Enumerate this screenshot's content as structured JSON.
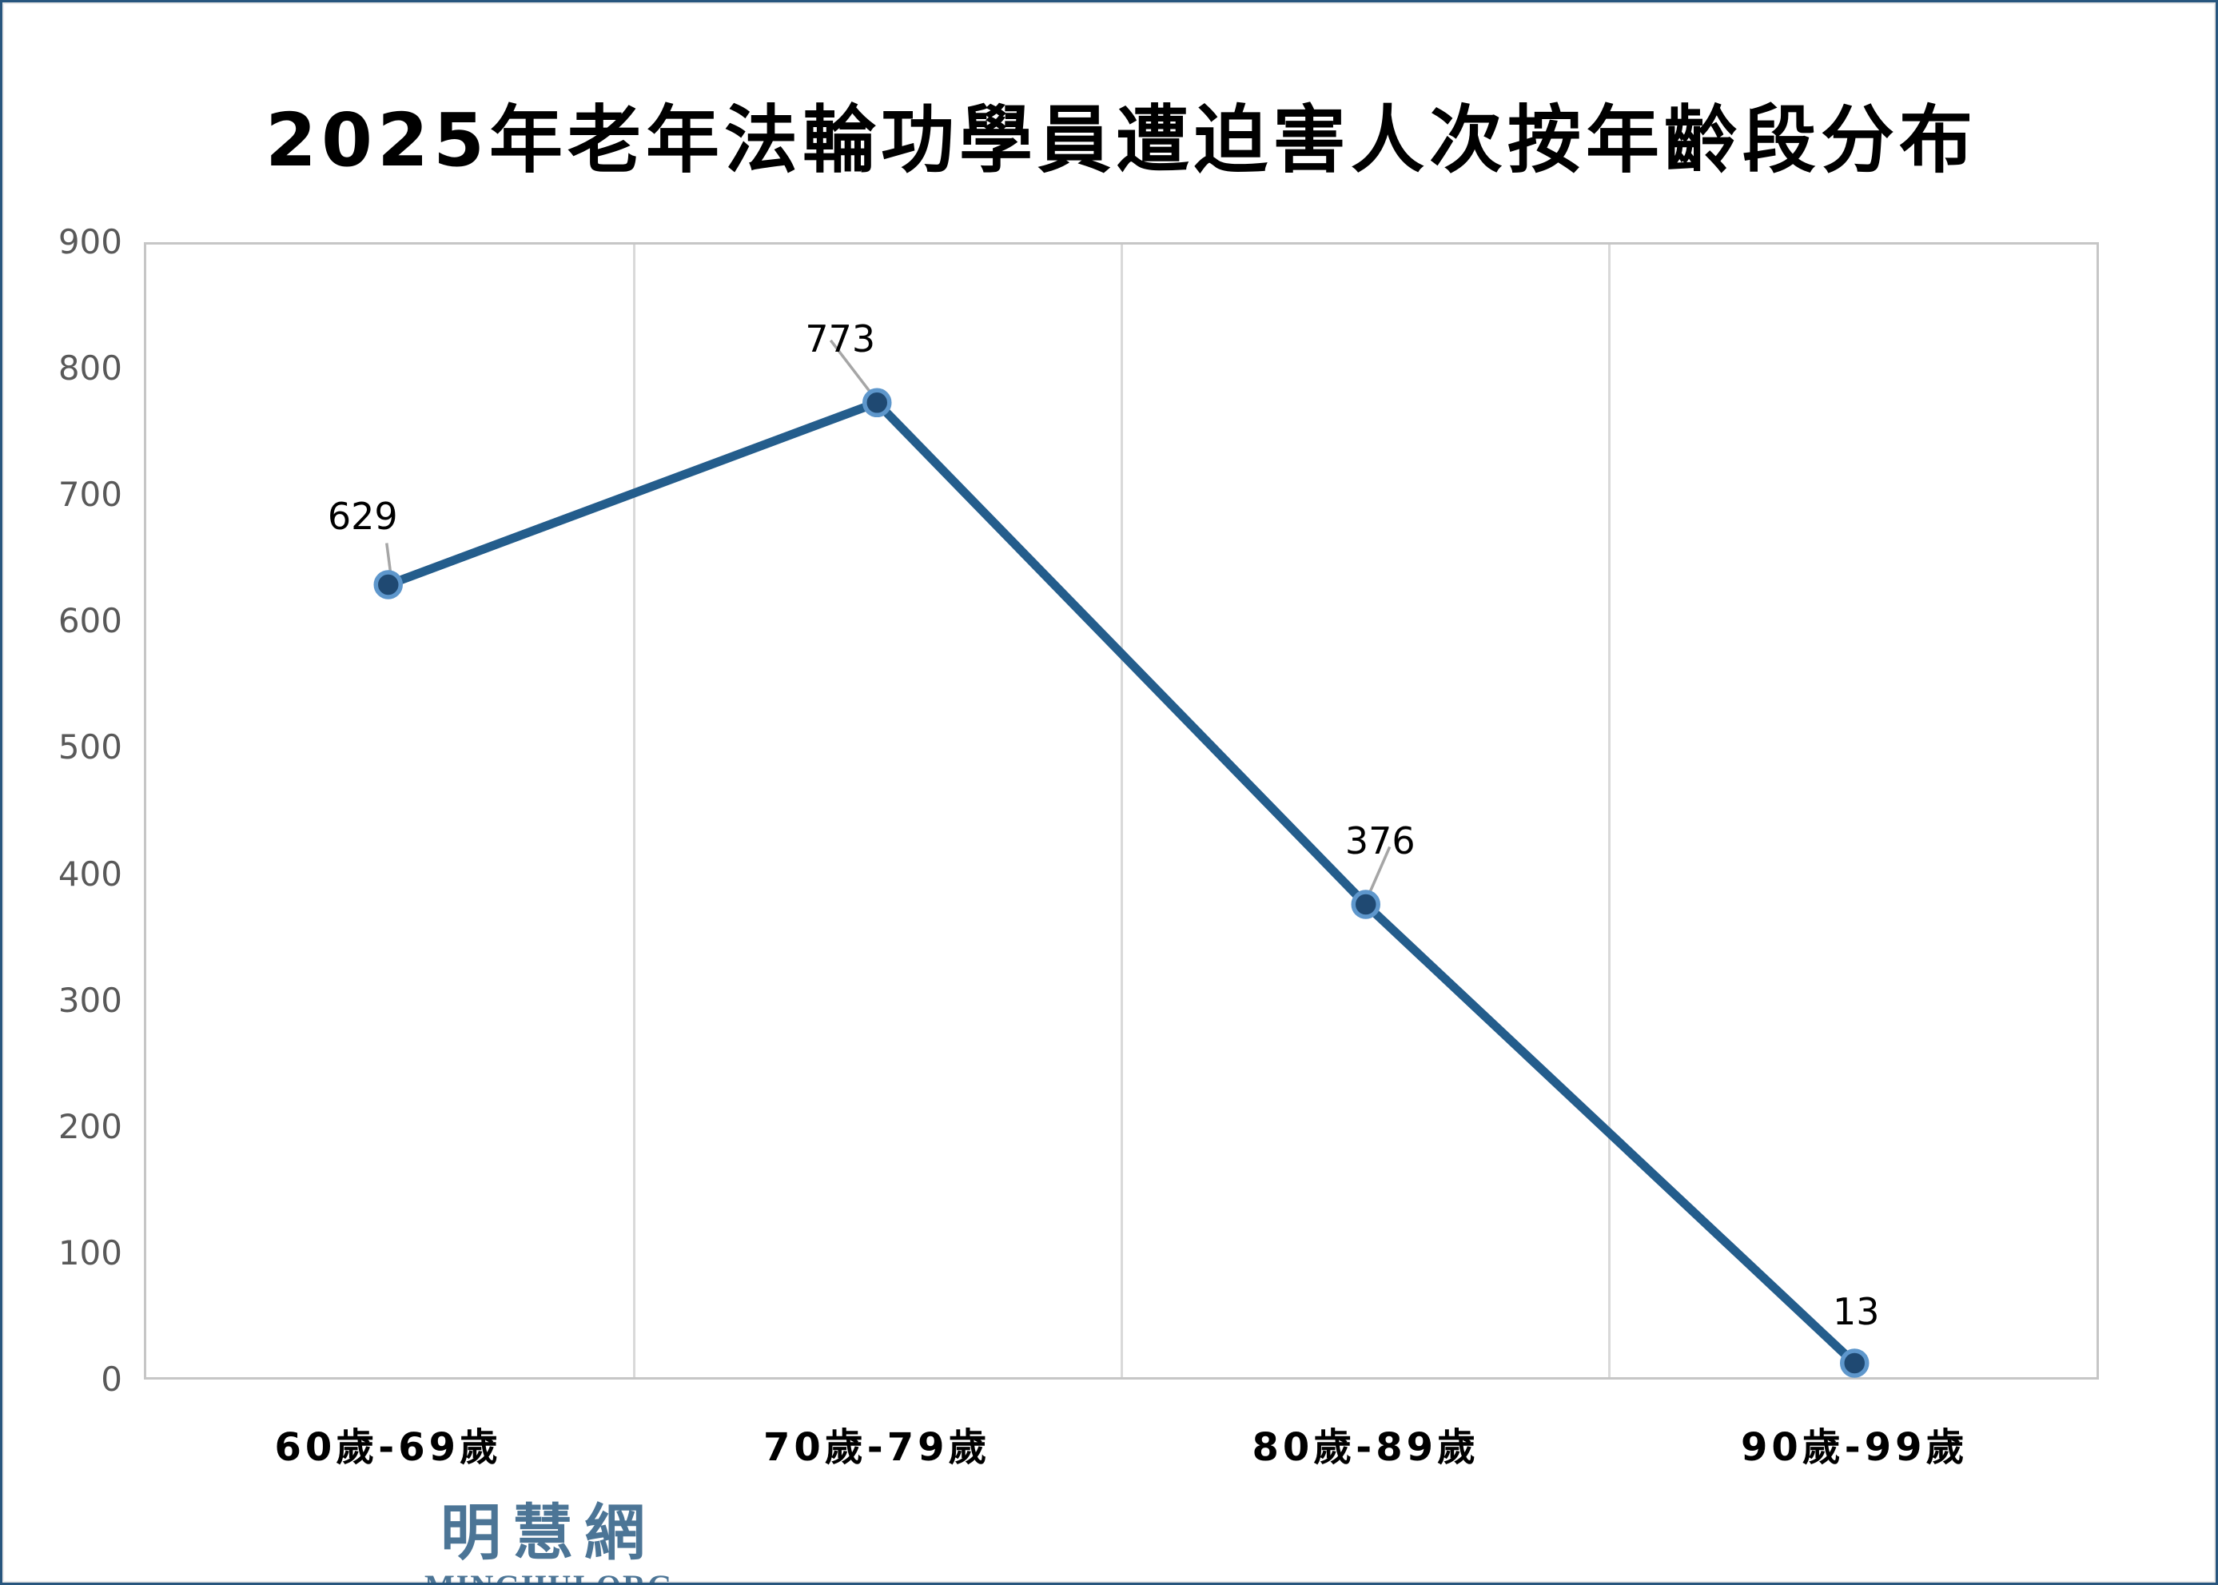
{
  "title": "2025年老年法輪功學員遭迫害人次按年齡段分布",
  "watermark": {
    "cjk": "明慧網",
    "latin": "MINGHUI.ORG"
  },
  "colors": {
    "line": "#245D8C",
    "marker_fill": "#1F4972",
    "marker_ring": "#5E97CC",
    "grid": "#D9D9D9",
    "plot_border": "#C6C6C6",
    "axis_text": "#595959",
    "label_text": "#000000",
    "leader_line": "#A6A6A6",
    "logo_blue": "#4C7596",
    "frame_border": "#28567E"
  },
  "chart_data": {
    "type": "line",
    "title": "2025年老年法輪功學員遭迫害人次按年齡段分布",
    "categories": [
      "60歲-69歲",
      "70歲-79歲",
      "80歲-89歲",
      "90歲-99歲"
    ],
    "values": [
      629,
      773,
      376,
      13
    ],
    "data_labels": [
      "629",
      "773",
      "376",
      "13"
    ],
    "xlabel": "",
    "ylabel": "",
    "ylim": [
      0,
      900
    ],
    "y_ticks": [
      900,
      800,
      700,
      600,
      500,
      400,
      300,
      200,
      100,
      0
    ],
    "grid": "vertical category separators only",
    "legend": "none",
    "marker": "filled circle with light-blue ring"
  }
}
